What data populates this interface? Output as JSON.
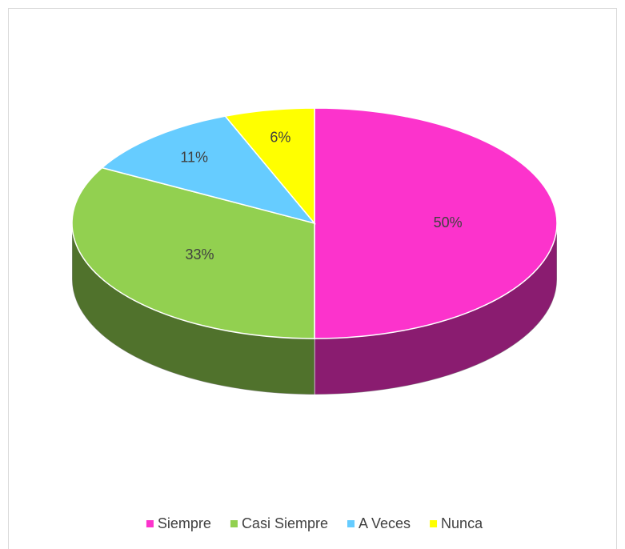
{
  "chart_data": {
    "type": "pie",
    "three_d": true,
    "categories": [
      "Siempre",
      "Casi Siempre",
      "A Veces",
      "Nunca"
    ],
    "values": [
      50,
      33,
      11,
      6
    ],
    "value_labels": [
      "50%",
      "33%",
      "11%",
      "6%"
    ],
    "colors": [
      "#fc33cc",
      "#92d050",
      "#66ccff",
      "#ffff00"
    ],
    "legend": "bottom"
  }
}
